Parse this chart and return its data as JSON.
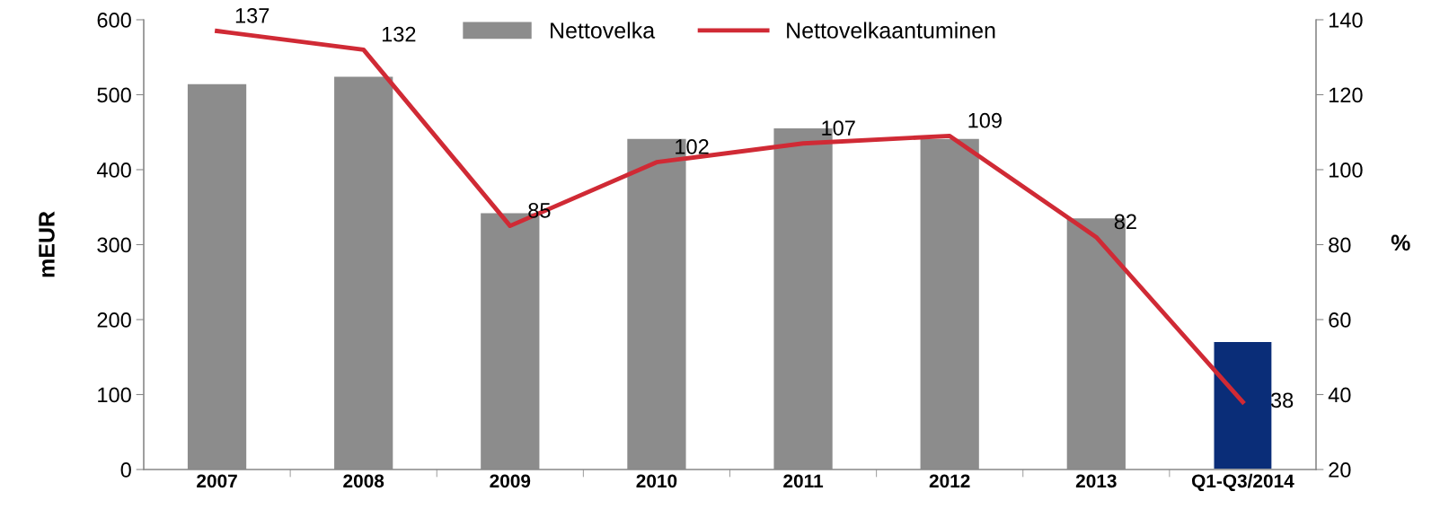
{
  "chart_data": {
    "type": "bar",
    "categories": [
      "2007",
      "2008",
      "2009",
      "2010",
      "2011",
      "2012",
      "2013",
      "Q1-Q3/2014"
    ],
    "series": [
      {
        "name": "Nettovelka",
        "color": "#8c8c8c",
        "colors": [
          "#8c8c8c",
          "#8c8c8c",
          "#8c8c8c",
          "#8c8c8c",
          "#8c8c8c",
          "#8c8c8c",
          "#8c8c8c",
          "#0a2d78"
        ],
        "values": [
          514,
          524,
          342,
          441,
          455,
          441,
          335,
          171
        ]
      },
      {
        "name": "Nettovelkaantuminen",
        "type": "line",
        "axis": "y2",
        "color": "#d02a35",
        "values": [
          137,
          132,
          85,
          102,
          107,
          109,
          82,
          38
        ],
        "value_labels": [
          "137",
          "132",
          "85",
          "102",
          "107",
          "109",
          "82",
          "38"
        ]
      }
    ],
    "ylabel": "mEUR",
    "y2label": "%",
    "ylim": [
      0,
      600
    ],
    "yticks": [
      0,
      100,
      200,
      300,
      400,
      500,
      600
    ],
    "y2lim": [
      20,
      140
    ],
    "y2ticks": [
      20,
      40,
      60,
      80,
      100,
      120,
      140
    ],
    "grid": false,
    "legend": "top",
    "marker": "none",
    "line_style": "solid"
  }
}
